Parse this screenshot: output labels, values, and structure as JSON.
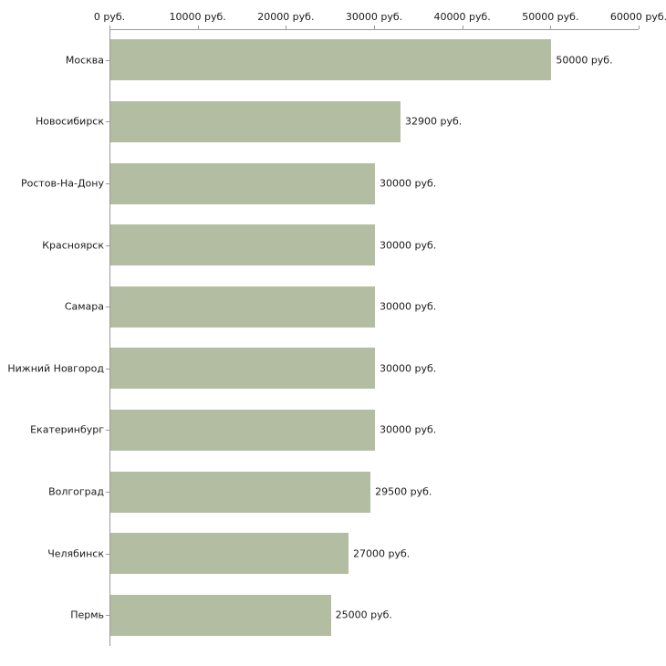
{
  "chart_data": {
    "type": "bar",
    "orientation": "horizontal",
    "title": "",
    "xlabel": "",
    "ylabel": "",
    "categories": [
      "Москва",
      "Новосибирск",
      "Ростов-На-Дону",
      "Красноярск",
      "Самара",
      "Нижний Новгород",
      "Екатеринбург",
      "Волгоград",
      "Челябинск",
      "Пермь"
    ],
    "values": [
      50000,
      32900,
      30000,
      30000,
      30000,
      30000,
      30000,
      29500,
      27000,
      25000
    ],
    "value_labels": [
      "50000 руб.",
      "32900 руб.",
      "30000 руб.",
      "30000 руб.",
      "30000 руб.",
      "30000 руб.",
      "30000 руб.",
      "29500 руб.",
      "27000 руб.",
      "25000 руб."
    ],
    "x_ticks": [
      0,
      10000,
      20000,
      30000,
      40000,
      50000,
      60000
    ],
    "x_tick_labels": [
      "0 руб.",
      "10000 руб.",
      "20000 руб.",
      "30000 руб.",
      "40000 руб.",
      "50000 руб.",
      "60000 руб."
    ],
    "xlim": [
      0,
      60000
    ],
    "grid": false,
    "legend": false,
    "bar_color": "#b3bda1",
    "axis_color": "#999999",
    "text_color": "#1a1a1a",
    "background_color": "#ffffff"
  }
}
